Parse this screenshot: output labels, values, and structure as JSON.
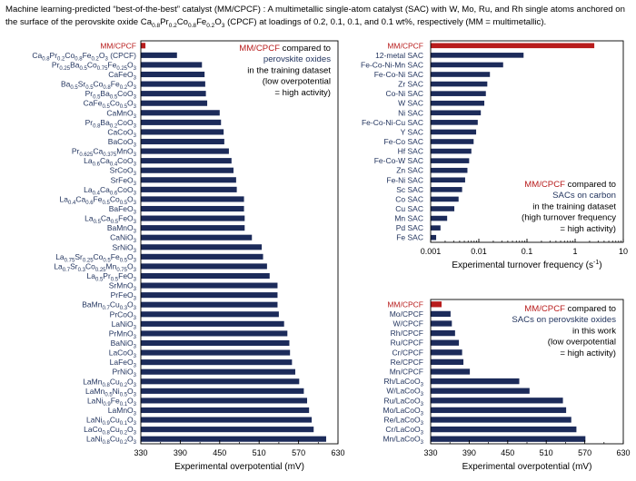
{
  "header": {
    "segments": [
      {
        "t": "Machine learning-predicted “best-of-the-best” catalyst (MM/CPCF) : A multimetallic single-atom catalyst (SAC) with W, Mo, Ru, and Rh single atoms anchored on the surface of the perovskite oxide Ca"
      },
      {
        "t": "0.8",
        "s": 1
      },
      {
        "t": "Pr"
      },
      {
        "t": "0.2",
        "s": 1
      },
      {
        "t": "Co"
      },
      {
        "t": "0.8",
        "s": 1
      },
      {
        "t": "Fe"
      },
      {
        "t": "0.2",
        "s": 1
      },
      {
        "t": "O"
      },
      {
        "t": "3",
        "s": 1
      },
      {
        "t": " (CPCF) at loadings of 0.2, 0.1, 0.1, and 0.1 wt%, respectively (MM = multimetallic)."
      }
    ]
  },
  "colors": {
    "bar": "#1c2b5a",
    "highlight": "#b81c1c",
    "label_blue": "#23355f"
  },
  "chart_data": [
    {
      "type": "bar",
      "orientation": "horizontal",
      "xlabel": "Experimental overpotential (mV)",
      "xlim": [
        330,
        630
      ],
      "ticks": [
        330,
        390,
        450,
        510,
        570,
        630
      ],
      "annotation": [
        {
          "segs": [
            {
              "t": "MM/CPCF",
              "c": "#b81c1c"
            },
            {
              "t": " compared to",
              "c": "#000000"
            }
          ]
        },
        {
          "segs": [
            {
              "t": "perovskite oxides",
              "c": "#23355f"
            }
          ]
        },
        {
          "segs": [
            {
              "t": "in the training dataset",
              "c": "#000000"
            }
          ]
        },
        {
          "segs": [
            {
              "t": "(low overpotential",
              "c": "#000000"
            }
          ]
        },
        {
          "segs": [
            {
              "t": "= high activity)",
              "c": "#000000"
            }
          ]
        }
      ],
      "categories": [
        [
          {
            "t": "MM/CPCF"
          }
        ],
        [
          {
            "t": "Ca"
          },
          {
            "t": "0.8",
            "s": 1
          },
          {
            "t": "Pr"
          },
          {
            "t": "0.2",
            "s": 1
          },
          {
            "t": "Co"
          },
          {
            "t": "0.8",
            "s": 1
          },
          {
            "t": "Fe"
          },
          {
            "t": "0.2",
            "s": 1
          },
          {
            "t": "O"
          },
          {
            "t": "3",
            "s": 1
          },
          {
            "t": " (CPCF)"
          }
        ],
        [
          {
            "t": "Pr"
          },
          {
            "t": "0.25",
            "s": 1
          },
          {
            "t": "Ba"
          },
          {
            "t": "0.5",
            "s": 1
          },
          {
            "t": "Co"
          },
          {
            "t": "0.75",
            "s": 1
          },
          {
            "t": "Fe"
          },
          {
            "t": "0.25",
            "s": 1
          },
          {
            "t": "O"
          },
          {
            "t": "3",
            "s": 1
          }
        ],
        [
          {
            "t": "CaFeO"
          },
          {
            "t": "3",
            "s": 1
          }
        ],
        [
          {
            "t": "Ba"
          },
          {
            "t": "0.5",
            "s": 1
          },
          {
            "t": "Sr"
          },
          {
            "t": "0.5",
            "s": 1
          },
          {
            "t": "Co"
          },
          {
            "t": "0.8",
            "s": 1
          },
          {
            "t": "Fe"
          },
          {
            "t": "0.2",
            "s": 1
          },
          {
            "t": "O"
          },
          {
            "t": "3",
            "s": 1
          }
        ],
        [
          {
            "t": "Pr"
          },
          {
            "t": "0.5",
            "s": 1
          },
          {
            "t": "Ba"
          },
          {
            "t": "0.5",
            "s": 1
          },
          {
            "t": "CoO"
          },
          {
            "t": "3",
            "s": 1
          }
        ],
        [
          {
            "t": "CaFe"
          },
          {
            "t": "0.5",
            "s": 1
          },
          {
            "t": "Co"
          },
          {
            "t": "0.5",
            "s": 1
          },
          {
            "t": "O"
          },
          {
            "t": "3",
            "s": 1
          }
        ],
        [
          {
            "t": "CaMnO"
          },
          {
            "t": "3",
            "s": 1
          }
        ],
        [
          {
            "t": "Pr"
          },
          {
            "t": "0.8",
            "s": 1
          },
          {
            "t": "Ba"
          },
          {
            "t": "0.2",
            "s": 1
          },
          {
            "t": "CoO"
          },
          {
            "t": "3",
            "s": 1
          }
        ],
        [
          {
            "t": "CaCoO"
          },
          {
            "t": "3",
            "s": 1
          }
        ],
        [
          {
            "t": "BaCoO"
          },
          {
            "t": "3",
            "s": 1
          }
        ],
        [
          {
            "t": "Pr"
          },
          {
            "t": "0.625",
            "s": 1
          },
          {
            "t": "Ca"
          },
          {
            "t": "0.375",
            "s": 1
          },
          {
            "t": "MnO"
          },
          {
            "t": "3",
            "s": 1
          }
        ],
        [
          {
            "t": "La"
          },
          {
            "t": "0.6",
            "s": 1
          },
          {
            "t": "Ca"
          },
          {
            "t": "0.4",
            "s": 1
          },
          {
            "t": "CoO"
          },
          {
            "t": "3",
            "s": 1
          }
        ],
        [
          {
            "t": "SrCoO"
          },
          {
            "t": "3",
            "s": 1
          }
        ],
        [
          {
            "t": "SrFeO"
          },
          {
            "t": "3",
            "s": 1
          }
        ],
        [
          {
            "t": "La"
          },
          {
            "t": "0.4",
            "s": 1
          },
          {
            "t": "Ca"
          },
          {
            "t": "0.6",
            "s": 1
          },
          {
            "t": "CoO"
          },
          {
            "t": "3",
            "s": 1
          }
        ],
        [
          {
            "t": "La"
          },
          {
            "t": "0.4",
            "s": 1
          },
          {
            "t": "Ca"
          },
          {
            "t": "0.6",
            "s": 1
          },
          {
            "t": "Fe"
          },
          {
            "t": "0.5",
            "s": 1
          },
          {
            "t": "Co"
          },
          {
            "t": "0.5",
            "s": 1
          },
          {
            "t": "O"
          },
          {
            "t": "3",
            "s": 1
          }
        ],
        [
          {
            "t": "BaFeO"
          },
          {
            "t": "3",
            "s": 1
          }
        ],
        [
          {
            "t": "La"
          },
          {
            "t": "0.5",
            "s": 1
          },
          {
            "t": "Ca"
          },
          {
            "t": "0.5",
            "s": 1
          },
          {
            "t": "FeO"
          },
          {
            "t": "3",
            "s": 1
          }
        ],
        [
          {
            "t": "BaMnO"
          },
          {
            "t": "3",
            "s": 1
          }
        ],
        [
          {
            "t": "CaNiO"
          },
          {
            "t": "3",
            "s": 1
          }
        ],
        [
          {
            "t": "SrNiO"
          },
          {
            "t": "3",
            "s": 1
          }
        ],
        [
          {
            "t": "La"
          },
          {
            "t": "0.75",
            "s": 1
          },
          {
            "t": "Sr"
          },
          {
            "t": "0.25",
            "s": 1
          },
          {
            "t": "Co"
          },
          {
            "t": "0.5",
            "s": 1
          },
          {
            "t": "Fe"
          },
          {
            "t": "0.5",
            "s": 1
          },
          {
            "t": "O"
          },
          {
            "t": "3",
            "s": 1
          }
        ],
        [
          {
            "t": "La"
          },
          {
            "t": "0.7",
            "s": 1
          },
          {
            "t": "Sr"
          },
          {
            "t": "0.3",
            "s": 1
          },
          {
            "t": "Co"
          },
          {
            "t": "0.25",
            "s": 1
          },
          {
            "t": "Mn"
          },
          {
            "t": "0.75",
            "s": 1
          },
          {
            "t": "O"
          },
          {
            "t": "3",
            "s": 1
          }
        ],
        [
          {
            "t": "La"
          },
          {
            "t": "0.5",
            "s": 1
          },
          {
            "t": "Pr"
          },
          {
            "t": "0.5",
            "s": 1
          },
          {
            "t": "FeO"
          },
          {
            "t": "3",
            "s": 1
          }
        ],
        [
          {
            "t": "SrMnO"
          },
          {
            "t": "3",
            "s": 1
          }
        ],
        [
          {
            "t": "PrFeO"
          },
          {
            "t": "3",
            "s": 1
          }
        ],
        [
          {
            "t": "BaMn"
          },
          {
            "t": "0.7",
            "s": 1
          },
          {
            "t": "Cu"
          },
          {
            "t": "0.3",
            "s": 1
          },
          {
            "t": "O"
          },
          {
            "t": "3",
            "s": 1
          }
        ],
        [
          {
            "t": "PrCoO"
          },
          {
            "t": "3",
            "s": 1
          }
        ],
        [
          {
            "t": "LaNiO"
          },
          {
            "t": "3",
            "s": 1
          }
        ],
        [
          {
            "t": "PrMnO"
          },
          {
            "t": "3",
            "s": 1
          }
        ],
        [
          {
            "t": "BaNiO"
          },
          {
            "t": "3",
            "s": 1
          }
        ],
        [
          {
            "t": "LaCoO"
          },
          {
            "t": "3",
            "s": 1
          }
        ],
        [
          {
            "t": "LaFeO"
          },
          {
            "t": "3",
            "s": 1
          }
        ],
        [
          {
            "t": "PrNiO"
          },
          {
            "t": "3",
            "s": 1
          }
        ],
        [
          {
            "t": "LaMn"
          },
          {
            "t": "0.8",
            "s": 1
          },
          {
            "t": "Cu"
          },
          {
            "t": "0.2",
            "s": 1
          },
          {
            "t": "O"
          },
          {
            "t": "3",
            "s": 1
          }
        ],
        [
          {
            "t": "LaMn"
          },
          {
            "t": "0.5",
            "s": 1
          },
          {
            "t": "Ni"
          },
          {
            "t": "0.5",
            "s": 1
          },
          {
            "t": "O"
          },
          {
            "t": "3",
            "s": 1
          }
        ],
        [
          {
            "t": "LaNi"
          },
          {
            "t": "0.9",
            "s": 1
          },
          {
            "t": "Fe"
          },
          {
            "t": "0.1",
            "s": 1
          },
          {
            "t": "O"
          },
          {
            "t": "3",
            "s": 1
          }
        ],
        [
          {
            "t": "LaMnO"
          },
          {
            "t": "3",
            "s": 1
          }
        ],
        [
          {
            "t": "LaNi"
          },
          {
            "t": "0.9",
            "s": 1
          },
          {
            "t": "Cu"
          },
          {
            "t": "0.1",
            "s": 1
          },
          {
            "t": "O"
          },
          {
            "t": "3",
            "s": 1
          }
        ],
        [
          {
            "t": "LaCo"
          },
          {
            "t": "0.8",
            "s": 1
          },
          {
            "t": "Cu"
          },
          {
            "t": "0.2",
            "s": 1
          },
          {
            "t": "O"
          },
          {
            "t": "3",
            "s": 1
          }
        ],
        [
          {
            "t": "LaNi"
          },
          {
            "t": "0.8",
            "s": 1
          },
          {
            "t": "Cu"
          },
          {
            "t": "0.2",
            "s": 1
          },
          {
            "t": "O"
          },
          {
            "t": "3",
            "s": 1
          }
        ]
      ],
      "values": [
        337,
        385,
        423,
        427,
        428,
        429,
        431,
        450,
        452,
        456,
        457,
        464,
        468,
        471,
        475,
        476,
        487,
        487,
        488,
        488,
        499,
        514,
        516,
        522,
        526,
        538,
        538,
        538,
        540,
        548,
        553,
        556,
        557,
        560,
        565,
        571,
        578,
        583,
        586,
        590,
        593,
        612
      ]
    },
    {
      "type": "bar",
      "orientation": "horizontal",
      "scale": "log",
      "xlabel_main": "Experimental turnover frequency (s",
      "xlabel_sup": "-1",
      "xlabel_end": ")",
      "xlim": [
        0.001,
        10
      ],
      "ticks": [
        "0.001",
        "0.01",
        "0.1",
        "1",
        "10"
      ],
      "annotation": [
        {
          "segs": [
            {
              "t": "MM/CPCF",
              "c": "#b81c1c"
            },
            {
              "t": " compared to",
              "c": "#000000"
            }
          ]
        },
        {
          "segs": [
            {
              "t": "SACs on carbon",
              "c": "#23355f"
            }
          ]
        },
        {
          "segs": [
            {
              "t": "in the training dataset",
              "c": "#000000"
            }
          ]
        },
        {
          "segs": [
            {
              "t": "(high turnover frequency",
              "c": "#000000"
            }
          ]
        },
        {
          "segs": [
            {
              "t": "= high activity)",
              "c": "#000000"
            }
          ]
        }
      ],
      "categories": [
        "MM/CPCF",
        "12-metal SAC",
        "Fe-Co-Ni-Mn SAC",
        "Fe-Co-Ni SAC",
        "Zr SAC",
        "Co-Ni SAC",
        "W SAC",
        "Ni SAC",
        "Fe-Co-Ni-Cu SAC",
        "Y SAC",
        "Fe-Co SAC",
        "Hf SAC",
        "Fe-Co-W SAC",
        "Zn SAC",
        "Fe-Ni SAC",
        "Sc SAC",
        "Co SAC",
        "Cu SAC",
        "Mn SAC",
        "Pd SAC",
        "Fe SAC"
      ],
      "values": [
        2.5,
        0.085,
        0.032,
        0.017,
        0.015,
        0.014,
        0.013,
        0.011,
        0.0095,
        0.0088,
        0.0078,
        0.007,
        0.0063,
        0.0058,
        0.0052,
        0.0045,
        0.0038,
        0.0031,
        0.0022,
        0.0016,
        0.0013
      ]
    },
    {
      "type": "bar",
      "orientation": "horizontal",
      "xlabel": "Experimental overpotential (mV)",
      "xlim": [
        330,
        630
      ],
      "ticks": [
        330,
        390,
        450,
        510,
        570,
        630
      ],
      "annotation": [
        {
          "segs": [
            {
              "t": "MM/CPCF",
              "c": "#b81c1c"
            },
            {
              "t": " compared to",
              "c": "#000000"
            }
          ]
        },
        {
          "segs": [
            {
              "t": "SACs on perovskite oxides",
              "c": "#23355f"
            }
          ]
        },
        {
          "segs": [
            {
              "t": "in this work",
              "c": "#000000"
            }
          ]
        },
        {
          "segs": [
            {
              "t": "(low overpotential",
              "c": "#000000"
            }
          ]
        },
        {
          "segs": [
            {
              "t": "= high activity)",
              "c": "#000000"
            }
          ]
        }
      ],
      "categories": [
        [
          {
            "t": "MM/CPCF"
          }
        ],
        [
          {
            "t": "Mo/CPCF"
          }
        ],
        [
          {
            "t": "W/CPCF"
          }
        ],
        [
          {
            "t": "Rh/CPCF"
          }
        ],
        [
          {
            "t": "Ru/CPCF"
          }
        ],
        [
          {
            "t": "Cr/CPCF"
          }
        ],
        [
          {
            "t": "Re/CPCF"
          }
        ],
        [
          {
            "t": "Mn/CPCF"
          }
        ],
        [
          {
            "t": "Rh/LaCoO"
          },
          {
            "t": "3",
            "s": 1
          }
        ],
        [
          {
            "t": "W/LaCoO"
          },
          {
            "t": "3",
            "s": 1
          }
        ],
        [
          {
            "t": "Ru/LaCoO"
          },
          {
            "t": "3",
            "s": 1
          }
        ],
        [
          {
            "t": "Mo/LaCoO"
          },
          {
            "t": "3",
            "s": 1
          }
        ],
        [
          {
            "t": "Re/LaCoO"
          },
          {
            "t": "3",
            "s": 1
          }
        ],
        [
          {
            "t": "Cr/LaCoO"
          },
          {
            "t": "3",
            "s": 1
          }
        ],
        [
          {
            "t": "Mn/LaCoO"
          },
          {
            "t": "3",
            "s": 1
          }
        ]
      ],
      "values": [
        347,
        361,
        363,
        368,
        374,
        379,
        381,
        391,
        468,
        484,
        536,
        541,
        549,
        557,
        571
      ]
    }
  ]
}
